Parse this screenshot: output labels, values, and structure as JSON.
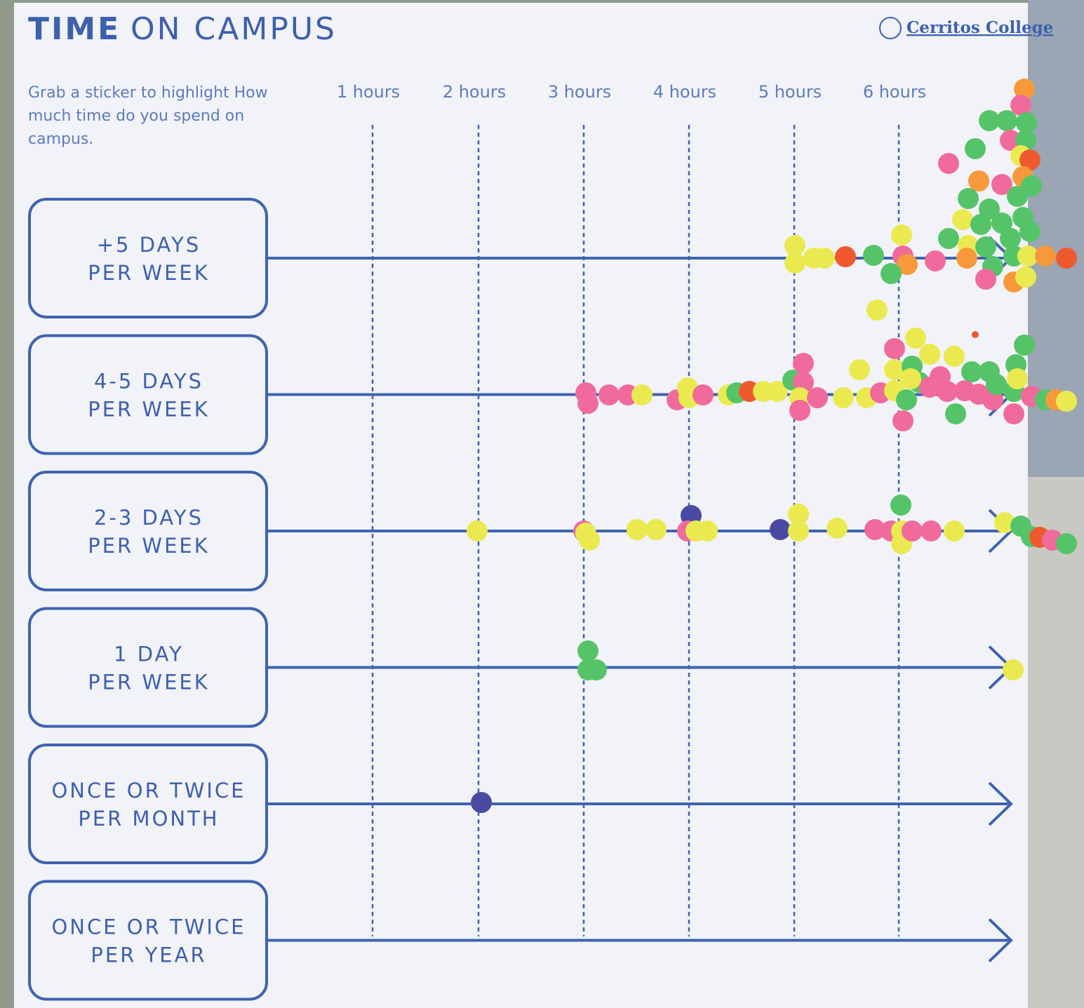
{
  "header": {
    "title_bold": "TIME",
    "title_rest": "ON CAMPUS",
    "logo": "Cerritos College"
  },
  "instruction": [
    "Grab a sticker to highlight How",
    "much time do you spend on",
    "campus."
  ],
  "hours": [
    "1 hours",
    "2 hours",
    "3 hours",
    "4 hours",
    "5 hours",
    "6 hours"
  ],
  "rows": [
    {
      "line1": "+5 DAYS",
      "line2": "PER WEEK"
    },
    {
      "line1": "4-5 DAYS",
      "line2": "PER WEEK"
    },
    {
      "line1": "2-3 DAYS",
      "line2": "PER WEEK"
    },
    {
      "line1": "1 DAY",
      "line2": "PER WEEK"
    },
    {
      "line1": "ONCE OR TWICE",
      "line2": "PER MONTH"
    },
    {
      "line1": "ONCE OR TWICE",
      "line2": "PER YEAR"
    }
  ]
}
